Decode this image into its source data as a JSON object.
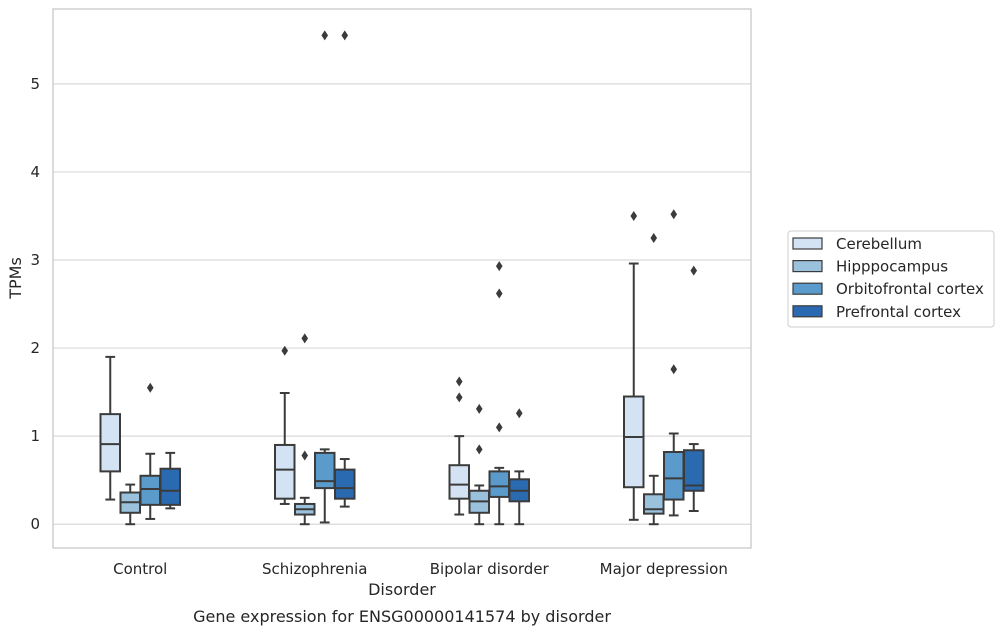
{
  "chart_data": {
    "type": "boxplot",
    "caption": "Gene expression for ENSG00000141574 by disorder",
    "xlabel": "Disorder",
    "ylabel": "TPMs",
    "ylim": [
      -0.27,
      5.85
    ],
    "yticks": [
      0,
      1,
      2,
      3,
      4,
      5
    ],
    "grid": "horizontal",
    "legend_position": "right",
    "categories": [
      "Control",
      "Schizophrenia",
      "Bipolar disorder",
      "Major depression"
    ],
    "series": [
      {
        "name": "Cerebellum",
        "color": "#d4e3f3",
        "boxes": [
          {
            "whislo": 0.28,
            "q1": 0.6,
            "med": 0.91,
            "q3": 1.25,
            "whishi": 1.9,
            "fliers": []
          },
          {
            "whislo": 0.23,
            "q1": 0.29,
            "med": 0.62,
            "q3": 0.9,
            "whishi": 1.49,
            "fliers": [
              1.97
            ]
          },
          {
            "whislo": 0.11,
            "q1": 0.29,
            "med": 0.45,
            "q3": 0.67,
            "whishi": 1.0,
            "fliers": [
              1.44,
              1.62
            ]
          },
          {
            "whislo": 0.05,
            "q1": 0.42,
            "med": 0.99,
            "q3": 1.45,
            "whishi": 2.96,
            "fliers": [
              3.5
            ]
          }
        ]
      },
      {
        "name": "Hipppocampus",
        "color": "#9ac2dd",
        "boxes": [
          {
            "whislo": 0.0,
            "q1": 0.13,
            "med": 0.25,
            "q3": 0.36,
            "whishi": 0.45,
            "fliers": []
          },
          {
            "whislo": 0.0,
            "q1": 0.11,
            "med": 0.17,
            "q3": 0.23,
            "whishi": 0.3,
            "fliers": [
              0.78,
              2.11
            ]
          },
          {
            "whislo": 0.0,
            "q1": 0.13,
            "med": 0.26,
            "q3": 0.38,
            "whishi": 0.44,
            "fliers": [
              0.85,
              1.31
            ]
          },
          {
            "whislo": 0.0,
            "q1": 0.12,
            "med": 0.17,
            "q3": 0.34,
            "whishi": 0.55,
            "fliers": [
              3.25
            ]
          }
        ]
      },
      {
        "name": "Orbitofrontal cortex",
        "color": "#5a9bcb",
        "boxes": [
          {
            "whislo": 0.06,
            "q1": 0.22,
            "med": 0.4,
            "q3": 0.55,
            "whishi": 0.8,
            "fliers": [
              1.55
            ]
          },
          {
            "whislo": 0.02,
            "q1": 0.41,
            "med": 0.49,
            "q3": 0.81,
            "whishi": 0.85,
            "fliers": [
              5.55
            ]
          },
          {
            "whislo": 0.0,
            "q1": 0.31,
            "med": 0.43,
            "q3": 0.6,
            "whishi": 0.64,
            "fliers": [
              1.1,
              2.62,
              2.93
            ]
          },
          {
            "whislo": 0.1,
            "q1": 0.28,
            "med": 0.52,
            "q3": 0.82,
            "whishi": 1.03,
            "fliers": [
              1.76,
              3.52
            ]
          }
        ]
      },
      {
        "name": "Prefrontal cortex",
        "color": "#2a6ab0",
        "boxes": [
          {
            "whislo": 0.18,
            "q1": 0.22,
            "med": 0.38,
            "q3": 0.63,
            "whishi": 0.81,
            "fliers": []
          },
          {
            "whislo": 0.2,
            "q1": 0.29,
            "med": 0.41,
            "q3": 0.62,
            "whishi": 0.74,
            "fliers": [
              5.55
            ]
          },
          {
            "whislo": 0.0,
            "q1": 0.26,
            "med": 0.38,
            "q3": 0.51,
            "whishi": 0.6,
            "fliers": [
              1.26
            ]
          },
          {
            "whislo": 0.15,
            "q1": 0.38,
            "med": 0.44,
            "q3": 0.84,
            "whishi": 0.91,
            "fliers": [
              2.88
            ]
          }
        ]
      }
    ]
  }
}
